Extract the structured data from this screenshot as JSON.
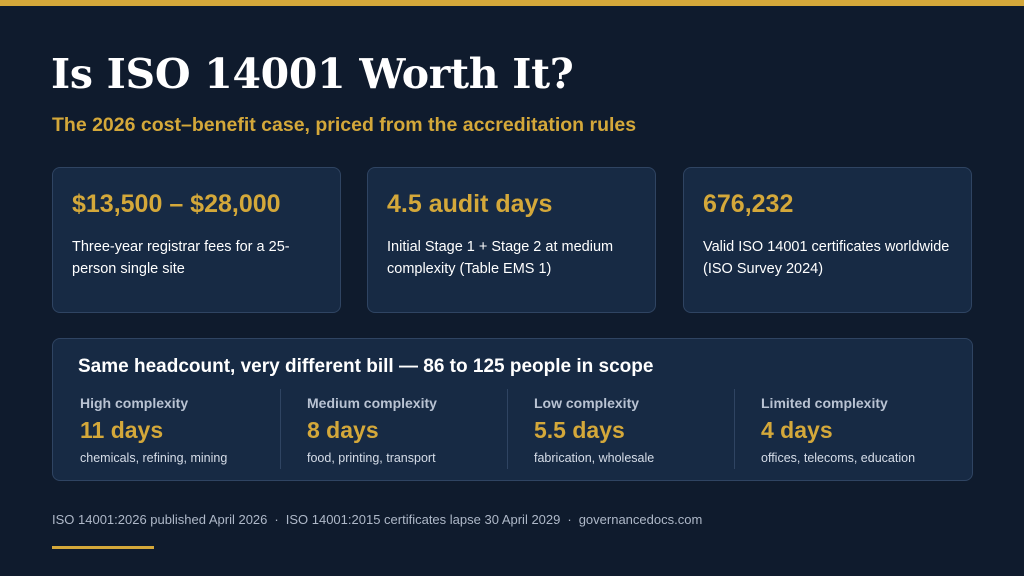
{
  "header": {
    "title": "Is ISO 14001 Worth It?",
    "subtitle": "The 2026 cost–benefit case, priced from the accreditation rules"
  },
  "stats": [
    {
      "value": "$13,500 – $28,000",
      "description": "Three-year registrar fees for a 25-person single site"
    },
    {
      "value": "4.5 audit days",
      "description": "Initial Stage 1 + Stage 2 at medium complexity (Table EMS 1)"
    },
    {
      "value": "676,232",
      "description": "Valid ISO 14001 certificates worldwide (ISO Survey 2024)"
    }
  ],
  "complexity": {
    "title": "Same headcount, very different bill — 86 to 125 people in scope",
    "levels": [
      {
        "label": "High complexity",
        "days": "11 days",
        "examples": "chemicals, refining, mining"
      },
      {
        "label": "Medium complexity",
        "days": "8 days",
        "examples": "food, printing, transport"
      },
      {
        "label": "Low complexity",
        "days": "5.5 days",
        "examples": "fabrication, wholesale"
      },
      {
        "label": "Limited complexity",
        "days": "4 days",
        "examples": "offices, telecoms, education"
      }
    ]
  },
  "footer": {
    "items": [
      "ISO 14001:2026 published April 2026",
      "ISO 14001:2015 certificates lapse 30 April 2029",
      "governancedocs.com"
    ],
    "separator": "·"
  },
  "colors": {
    "background": "#0f1b2d",
    "card": "#172a44",
    "accent": "#d4a83a"
  }
}
